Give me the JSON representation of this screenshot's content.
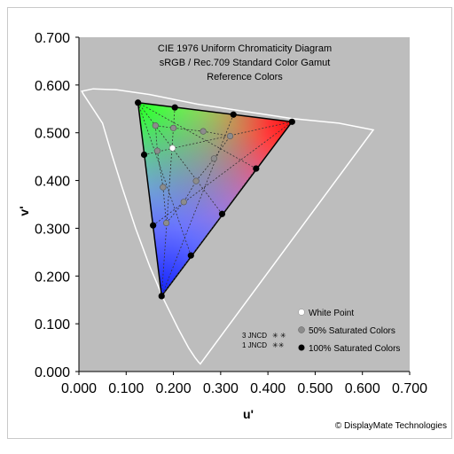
{
  "chart_data": {
    "type": "scatter",
    "title_lines": [
      "CIE 1976 Uniform Chromaticity Diagram",
      "sRGB / Rec.709 Standard Color Gamut",
      "Reference Colors"
    ],
    "xlabel": "u'",
    "ylabel": "v'",
    "xlim": [
      0,
      0.7
    ],
    "ylim": [
      0,
      0.7
    ],
    "x_ticks": [
      "0.000",
      "0.100",
      "0.200",
      "0.300",
      "0.400",
      "0.500",
      "0.600",
      "0.700"
    ],
    "y_ticks": [
      "0.000",
      "0.100",
      "0.200",
      "0.300",
      "0.400",
      "0.500",
      "0.600",
      "0.700"
    ],
    "grid": false,
    "legend_position": "bottom-right",
    "colors": {
      "plot_background": "#bdbdbd",
      "spectral_locus": "#ffffff",
      "gamut_edge": "#000000",
      "saturated_marker": "#000000",
      "half_saturated_marker": "#8c8c8c",
      "white_point_marker": "#ffffff"
    },
    "gamut_vertices": {
      "red": [
        0.451,
        0.523
      ],
      "green": [
        0.125,
        0.563
      ],
      "blue": [
        0.175,
        0.158
      ]
    },
    "white_point": [
      0.198,
      0.468
    ],
    "spectral_locus": [
      [
        0.257,
        0.016
      ],
      [
        0.253,
        0.02
      ],
      [
        0.245,
        0.03
      ],
      [
        0.232,
        0.05
      ],
      [
        0.21,
        0.09
      ],
      [
        0.18,
        0.15
      ],
      [
        0.15,
        0.22
      ],
      [
        0.12,
        0.3
      ],
      [
        0.09,
        0.39
      ],
      [
        0.068,
        0.46
      ],
      [
        0.05,
        0.52
      ],
      [
        0.01,
        0.58
      ],
      [
        0.006,
        0.587
      ],
      [
        0.03,
        0.592
      ],
      [
        0.08,
        0.59
      ],
      [
        0.15,
        0.58
      ],
      [
        0.25,
        0.56
      ],
      [
        0.35,
        0.545
      ],
      [
        0.45,
        0.53
      ],
      [
        0.55,
        0.52
      ],
      [
        0.623,
        0.506
      ],
      [
        0.257,
        0.016
      ]
    ],
    "series": [
      {
        "name": "100% Saturated Colors",
        "points": [
          [
            0.451,
            0.523
          ],
          [
            0.125,
            0.563
          ],
          [
            0.175,
            0.158
          ],
          [
            0.203,
            0.553
          ],
          [
            0.327,
            0.538
          ],
          [
            0.138,
            0.454
          ],
          [
            0.157,
            0.306
          ],
          [
            0.237,
            0.243
          ],
          [
            0.303,
            0.33
          ],
          [
            0.375,
            0.425
          ]
        ]
      },
      {
        "name": "50% Saturated Colors",
        "points": [
          [
            0.162,
            0.515
          ],
          [
            0.2,
            0.51
          ],
          [
            0.263,
            0.503
          ],
          [
            0.32,
            0.493
          ],
          [
            0.166,
            0.462
          ],
          [
            0.178,
            0.386
          ],
          [
            0.185,
            0.311
          ],
          [
            0.222,
            0.355
          ],
          [
            0.248,
            0.399
          ],
          [
            0.286,
            0.446
          ]
        ]
      },
      {
        "name": "White Point",
        "points": [
          [
            0.198,
            0.468
          ]
        ]
      }
    ],
    "jncd_labels": [
      "3 JNCD",
      "1 JNCD"
    ],
    "credit": "© DisplayMate Technologies"
  }
}
